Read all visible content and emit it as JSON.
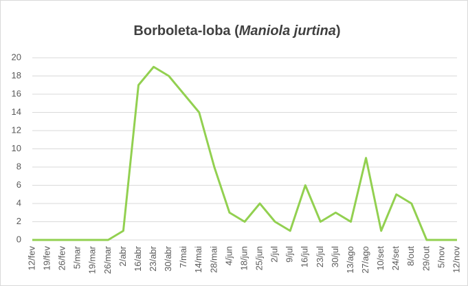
{
  "chart_data": {
    "type": "line",
    "title_parts": [
      "Borboleta-loba (",
      "Maniola jurtina",
      ")"
    ],
    "categories": [
      "12/fev",
      "19/fev",
      "26/fev",
      "5/mar",
      "19/mar",
      "26/mar",
      "2/abr",
      "16/abr",
      "23/abr",
      "30/abr",
      "7/mai",
      "14/mai",
      "28/mai",
      "4/jun",
      "18/jun",
      "25/jun",
      "2/jul",
      "9/jul",
      "16/jul",
      "23/jul",
      "30/jul",
      "13/ago",
      "27/ago",
      "10/set",
      "24/set",
      "8/out",
      "29/out",
      "5/nov",
      "12/nov"
    ],
    "values": [
      0,
      0,
      0,
      0,
      0,
      0,
      1,
      17,
      19,
      18,
      16,
      14,
      8,
      3,
      2,
      4,
      2,
      1,
      6,
      2,
      3,
      2,
      9,
      1,
      5,
      4,
      0,
      0,
      0
    ],
    "color": "#92d050",
    "ylim": [
      0,
      20
    ],
    "yticks": [
      0,
      2,
      4,
      6,
      8,
      10,
      12,
      14,
      16,
      18,
      20
    ],
    "grid": true
  }
}
